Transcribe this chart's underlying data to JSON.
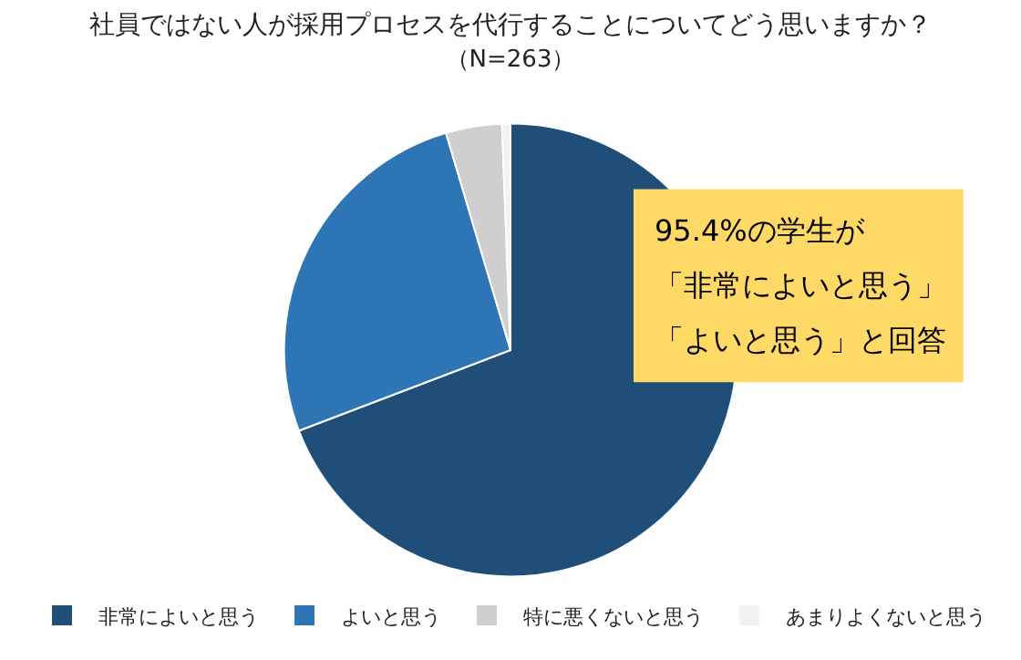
{
  "chart_data": {
    "type": "pie",
    "title": "社員ではない人が採用プロセスを代行することについてどう思いますか？",
    "subtitle": "（N=263）",
    "categories": [
      "非常によいと思う",
      "よいと思う",
      "特に悪くないと思う",
      "あまりよくないと思う"
    ],
    "values": [
      69.2,
      26.2,
      4.0,
      0.6
    ],
    "colors": [
      "#1f4e79",
      "#2e75b6",
      "#d0cece",
      "#f2f2f2"
    ],
    "legend": "bottom",
    "annotations": [
      "95.4%の学生が",
      "「非常によいと思う」",
      "「よいと思う」と回答"
    ]
  }
}
